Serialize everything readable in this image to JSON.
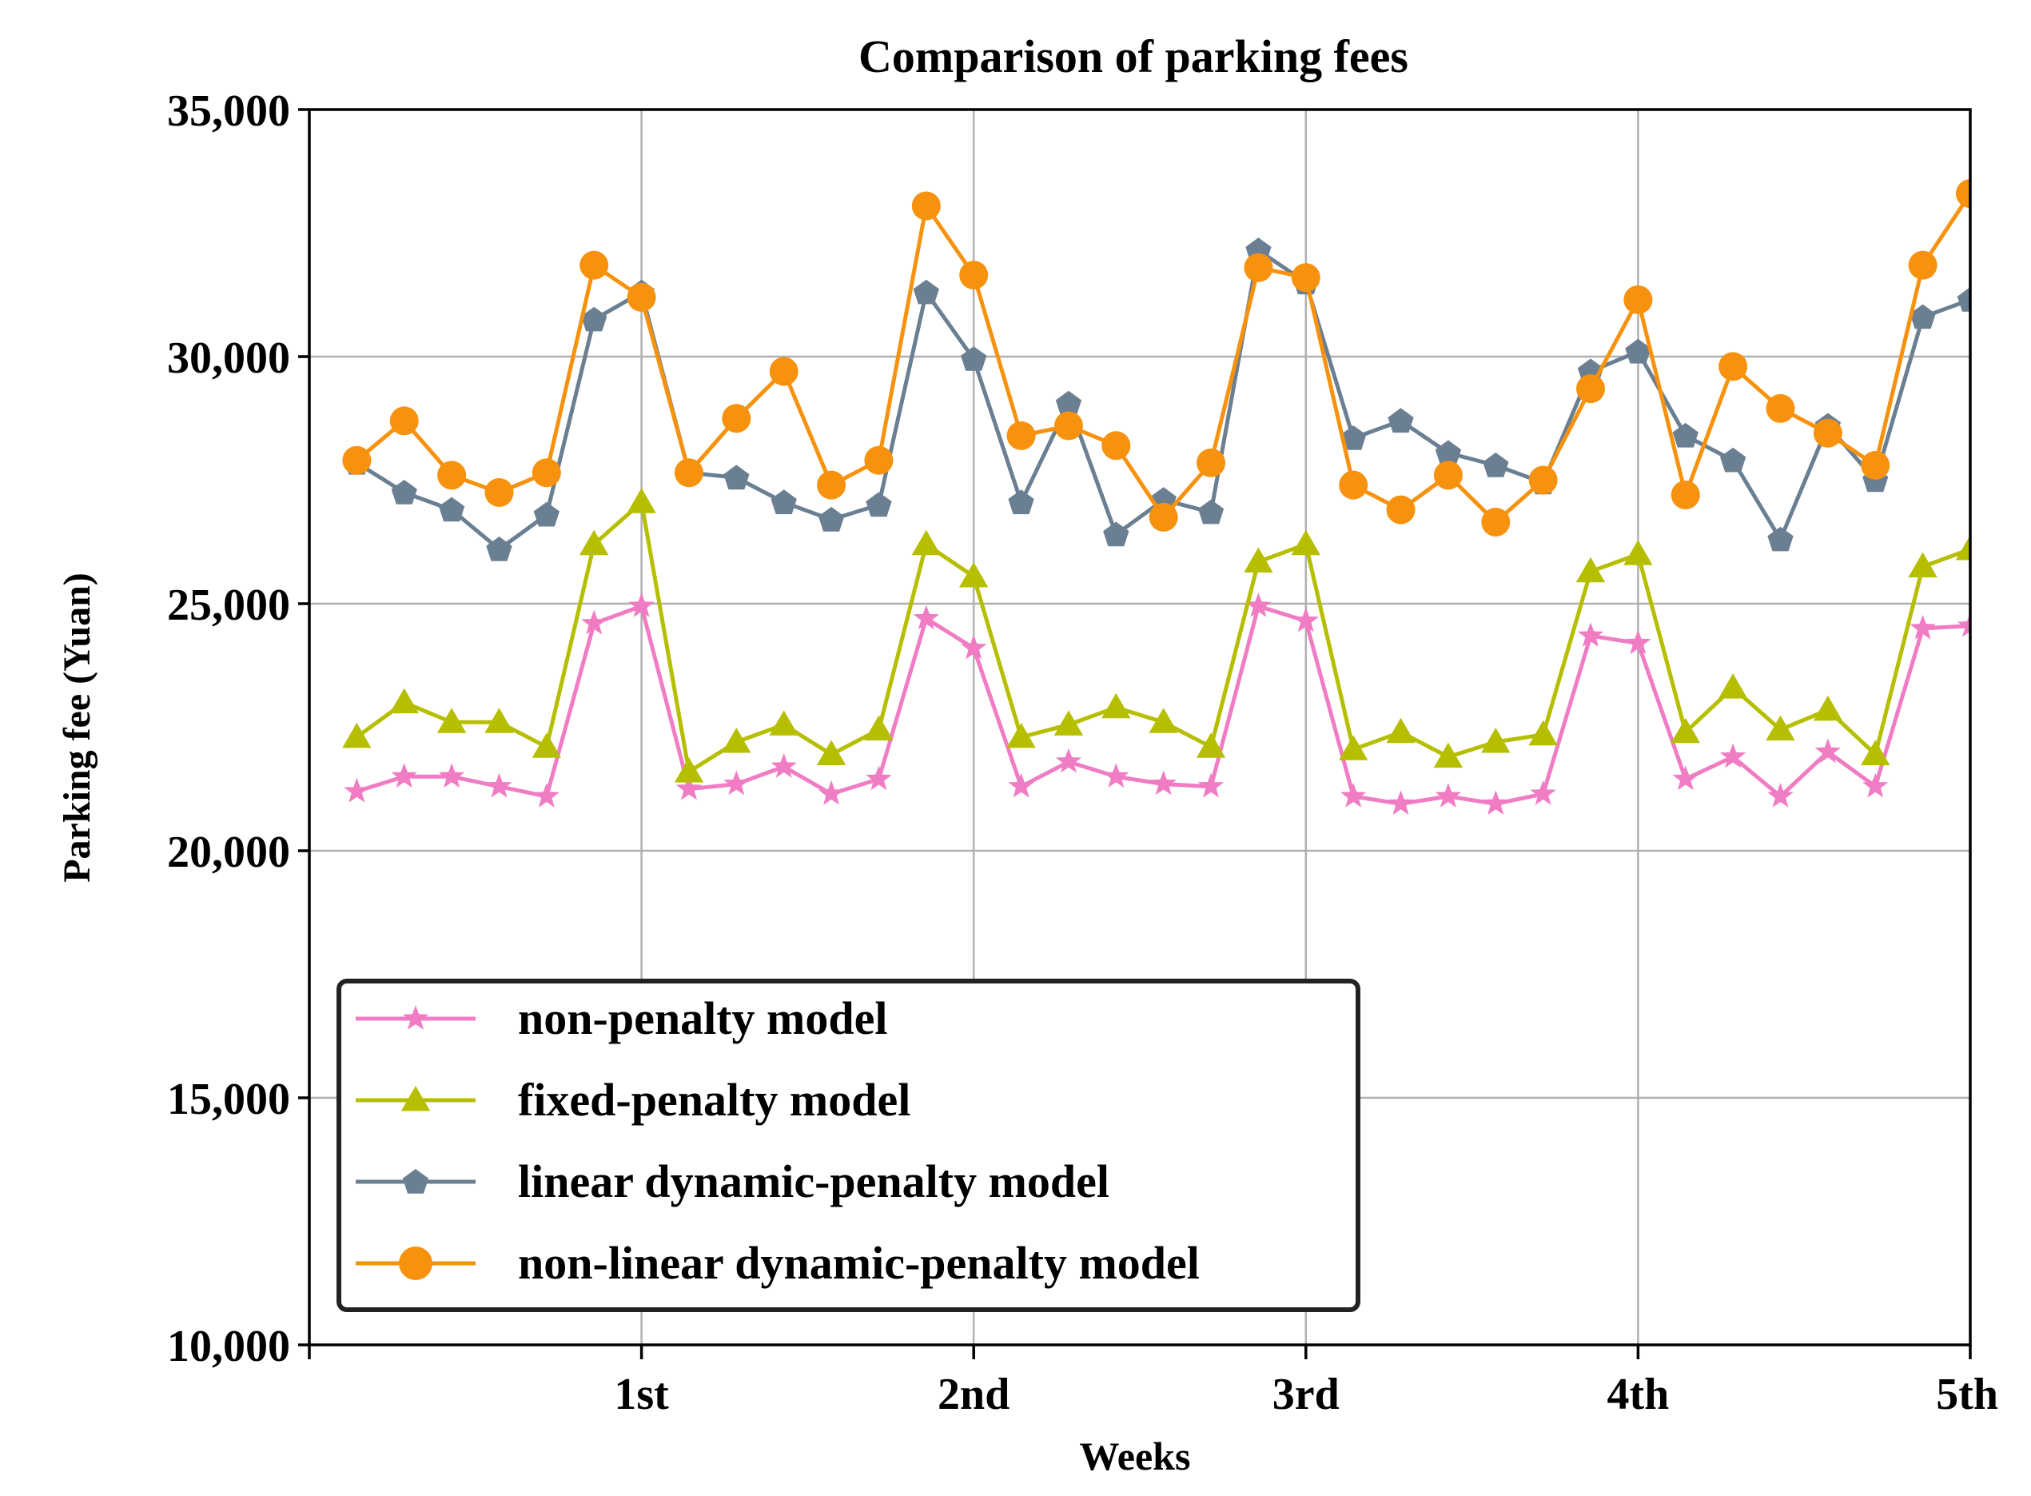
{
  "chart_data": {
    "type": "line",
    "title": "Comparison of parking fees",
    "xlabel": "Weeks",
    "ylabel": "Parking fee (Yuan)",
    "ylim": [
      10000,
      35000
    ],
    "xlim": [
      0,
      35
    ],
    "grid": true,
    "legend_position": "lower-left",
    "yticks": [
      10000,
      15000,
      20000,
      25000,
      30000,
      35000
    ],
    "ytick_labels": [
      "10,000",
      "15,000",
      "20,000",
      "25,000",
      "30,000",
      "35,000"
    ],
    "xticks": [
      7,
      14,
      21,
      28,
      35
    ],
    "xtick_labels": [
      "1st",
      "2nd",
      "3rd",
      "4th",
      "5th"
    ],
    "x": [
      1,
      2,
      3,
      4,
      5,
      6,
      7,
      8,
      9,
      10,
      11,
      12,
      13,
      14,
      15,
      16,
      17,
      18,
      19,
      20,
      21,
      22,
      23,
      24,
      25,
      26,
      27,
      28,
      29,
      30,
      31,
      32,
      33,
      34,
      35
    ],
    "series": [
      {
        "name": "non-penalty model",
        "color": "#f07cc4",
        "marker": "star",
        "values": [
          21200,
          21500,
          21500,
          21300,
          21100,
          24600,
          24950,
          21250,
          21350,
          21700,
          21150,
          21450,
          24700,
          24100,
          21300,
          21800,
          21500,
          21350,
          21300,
          24950,
          24650,
          21100,
          20950,
          21100,
          20950,
          21150,
          24350,
          24200,
          21450,
          21900,
          21100,
          22000,
          21300,
          24500,
          24550
        ]
      },
      {
        "name": "fixed-penalty model",
        "color": "#b5bf00",
        "marker": "triangle",
        "values": [
          22300,
          23000,
          22600,
          22600,
          22100,
          26200,
          27050,
          21600,
          22200,
          22550,
          21950,
          22450,
          26200,
          25550,
          22300,
          22550,
          22900,
          22600,
          22100,
          25850,
          26200,
          22050,
          22400,
          21900,
          22200,
          22350,
          25650,
          26000,
          22400,
          23300,
          22450,
          22850,
          21950,
          25750,
          26100
        ]
      },
      {
        "name": "linear dynamic-penalty model",
        "color": "#6b7f93",
        "marker": "pentagon",
        "values": [
          27850,
          27250,
          26900,
          26100,
          26800,
          30750,
          31300,
          27650,
          27550,
          27050,
          26700,
          27000,
          31300,
          29950,
          27050,
          29050,
          26400,
          27100,
          26850,
          32150,
          31500,
          28350,
          28700,
          28050,
          27800,
          27450,
          29700,
          30100,
          28400,
          27900,
          26300,
          28600,
          27500,
          30800,
          31150
        ]
      },
      {
        "name": "non-linear dynamic-penalty model",
        "color": "#f7920e",
        "marker": "circle",
        "values": [
          27900,
          28700,
          27600,
          27250,
          27650,
          31850,
          31200,
          27650,
          28750,
          29700,
          27400,
          27900,
          33050,
          31650,
          28400,
          28600,
          28200,
          26750,
          27850,
          31800,
          31600,
          27400,
          26900,
          27600,
          26650,
          27500,
          29350,
          31150,
          27200,
          29800,
          28950,
          28450,
          27800,
          31850,
          33300
        ]
      }
    ]
  }
}
